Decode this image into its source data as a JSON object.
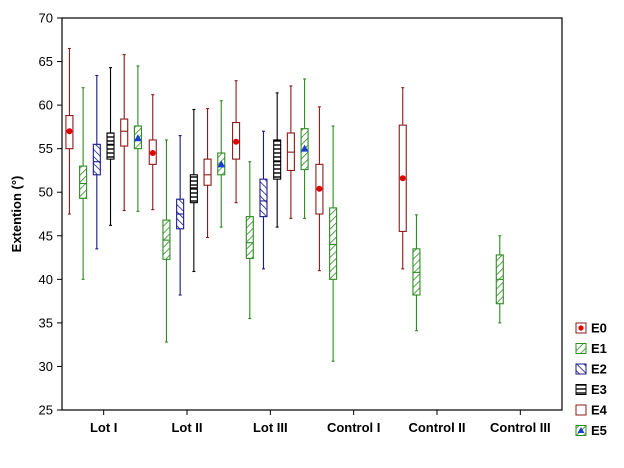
{
  "chart_data": {
    "type": "box",
    "ylabel": "Extention (°)",
    "xlabel": "",
    "ylim": [
      25,
      70
    ],
    "yticks": [
      25,
      30,
      35,
      40,
      45,
      50,
      55,
      60,
      65,
      70
    ],
    "grid": false,
    "legend_position": "bottom-right",
    "categories": [
      "Lot I",
      "Lot II",
      "Lot III",
      "Control I",
      "Control II",
      "Control III"
    ],
    "series": [
      {
        "name": "E0",
        "marker": "circle",
        "color": "#8b1a1a",
        "marker_color": "#e00000",
        "pattern": "none",
        "boxes": [
          {
            "category": "Lot I",
            "mean": 57,
            "q1": 55,
            "q3": 58.8,
            "min": 47.5,
            "max": 66.5
          },
          {
            "category": "Lot II",
            "mean": 54.5,
            "q1": 53.2,
            "q3": 56,
            "min": 48,
            "max": 61.2
          },
          {
            "category": "Lot III",
            "mean": 55.8,
            "q1": 53.8,
            "q3": 58,
            "min": 48.8,
            "max": 62.8
          },
          {
            "category": "Control I",
            "mean": 50.4,
            "q1": 47.5,
            "q3": 53.2,
            "min": 41,
            "max": 59.8
          },
          {
            "category": "Control II",
            "mean": 51.6,
            "q1": 45.5,
            "q3": 57.7,
            "min": 41.2,
            "max": 62
          }
        ]
      },
      {
        "name": "E1",
        "marker": "none",
        "color": "#2e8b22",
        "marker_color": "#2e8b22",
        "pattern": "diagonal",
        "boxes": [
          {
            "category": "Lot I",
            "mean": 51,
            "q1": 49.3,
            "q3": 53,
            "min": 40,
            "max": 62
          },
          {
            "category": "Lot II",
            "mean": 44.5,
            "q1": 42.3,
            "q3": 46.8,
            "min": 32.8,
            "max": 56
          },
          {
            "category": "Lot III",
            "mean": 44.2,
            "q1": 42.4,
            "q3": 47.2,
            "min": 35.5,
            "max": 53.5
          },
          {
            "category": "Control I",
            "mean": 44,
            "q1": 40,
            "q3": 48.2,
            "min": 30.6,
            "max": 57.6
          },
          {
            "category": "Control II",
            "mean": 40.8,
            "q1": 38.2,
            "q3": 43.5,
            "min": 34.1,
            "max": 47.4
          },
          {
            "category": "Control III",
            "mean": 40,
            "q1": 37.2,
            "q3": 42.8,
            "min": 35,
            "max": 45
          }
        ]
      },
      {
        "name": "E2",
        "marker": "none",
        "color": "#1a1a8c",
        "marker_color": "#1a1a8c",
        "pattern": "diagonal-reverse",
        "boxes": [
          {
            "category": "Lot I",
            "mean": 53.5,
            "q1": 52,
            "q3": 55.5,
            "min": 43.5,
            "max": 63.4
          },
          {
            "category": "Lot II",
            "mean": 47.5,
            "q1": 45.8,
            "q3": 49.2,
            "min": 38.2,
            "max": 56.5
          },
          {
            "category": "Lot III",
            "mean": 49,
            "q1": 47.2,
            "q3": 51.5,
            "min": 41.2,
            "max": 57
          }
        ]
      },
      {
        "name": "E3",
        "marker": "none",
        "color": "#000000",
        "marker_color": "#000000",
        "pattern": "horizontal",
        "boxes": [
          {
            "category": "Lot I",
            "mean": 55.5,
            "q1": 53.8,
            "q3": 56.8,
            "min": 46.2,
            "max": 64.3
          },
          {
            "category": "Lot II",
            "mean": 50.5,
            "q1": 48.8,
            "q3": 52,
            "min": 40.9,
            "max": 59.5
          },
          {
            "category": "Lot III",
            "mean": 53.5,
            "q1": 51.5,
            "q3": 56,
            "min": 46,
            "max": 61.4
          }
        ]
      },
      {
        "name": "E4",
        "marker": "none",
        "color": "#8b1a1a",
        "marker_color": "#8b1a1a",
        "pattern": "none",
        "boxes": [
          {
            "category": "Lot I",
            "mean": 57,
            "q1": 55.3,
            "q3": 58.4,
            "min": 47.9,
            "max": 65.8
          },
          {
            "category": "Lot II",
            "mean": 52,
            "q1": 50.8,
            "q3": 53.8,
            "min": 44.8,
            "max": 59.6
          },
          {
            "category": "Lot III",
            "mean": 54.6,
            "q1": 52.5,
            "q3": 56.8,
            "min": 47,
            "max": 62.2
          }
        ]
      },
      {
        "name": "E5",
        "marker": "triangle",
        "color": "#2e8b22",
        "marker_color": "#1a3fd0",
        "pattern": "diagonal",
        "boxes": [
          {
            "category": "Lot I",
            "mean": 56.2,
            "q1": 55,
            "q3": 57.6,
            "min": 47.8,
            "max": 64.5
          },
          {
            "category": "Lot II",
            "mean": 53.2,
            "q1": 52,
            "q3": 54.5,
            "min": 46,
            "max": 60.5
          },
          {
            "category": "Lot III",
            "mean": 55,
            "q1": 52.6,
            "q3": 57.3,
            "min": 47,
            "max": 63
          }
        ]
      }
    ]
  }
}
